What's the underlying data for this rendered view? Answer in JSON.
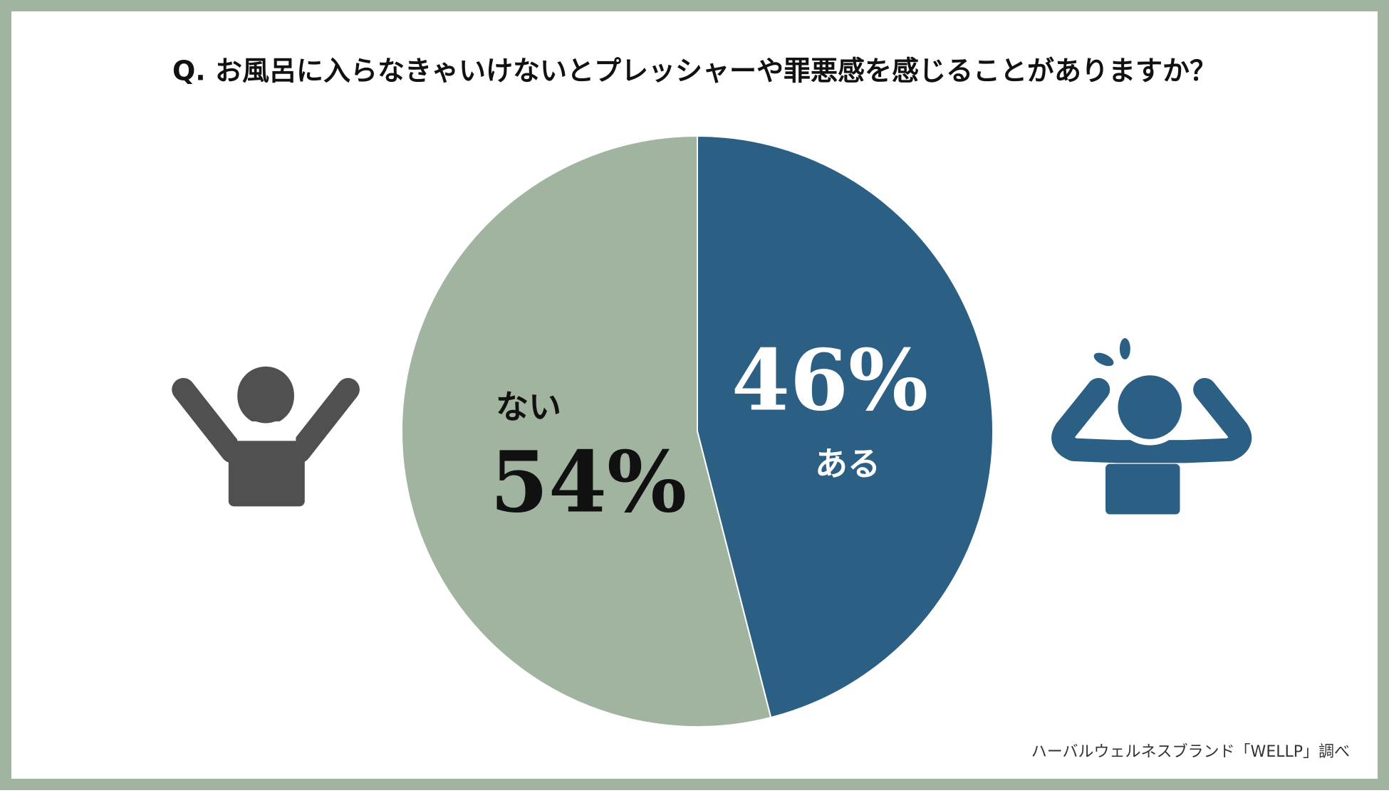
{
  "chart_data": {
    "type": "pie",
    "title": "Q. お風呂に入らなきゃいけないとプレッシャーや罪悪感を感じることがありますか？",
    "categories": [
      "ある",
      "ない"
    ],
    "values": [
      46,
      54
    ],
    "value_labels": [
      "46%",
      "54%"
    ],
    "colors": [
      "#2b5f84",
      "#a1b4a0"
    ],
    "source": "ハーバルウェルネスブランド「WELLP」調べ"
  }
}
